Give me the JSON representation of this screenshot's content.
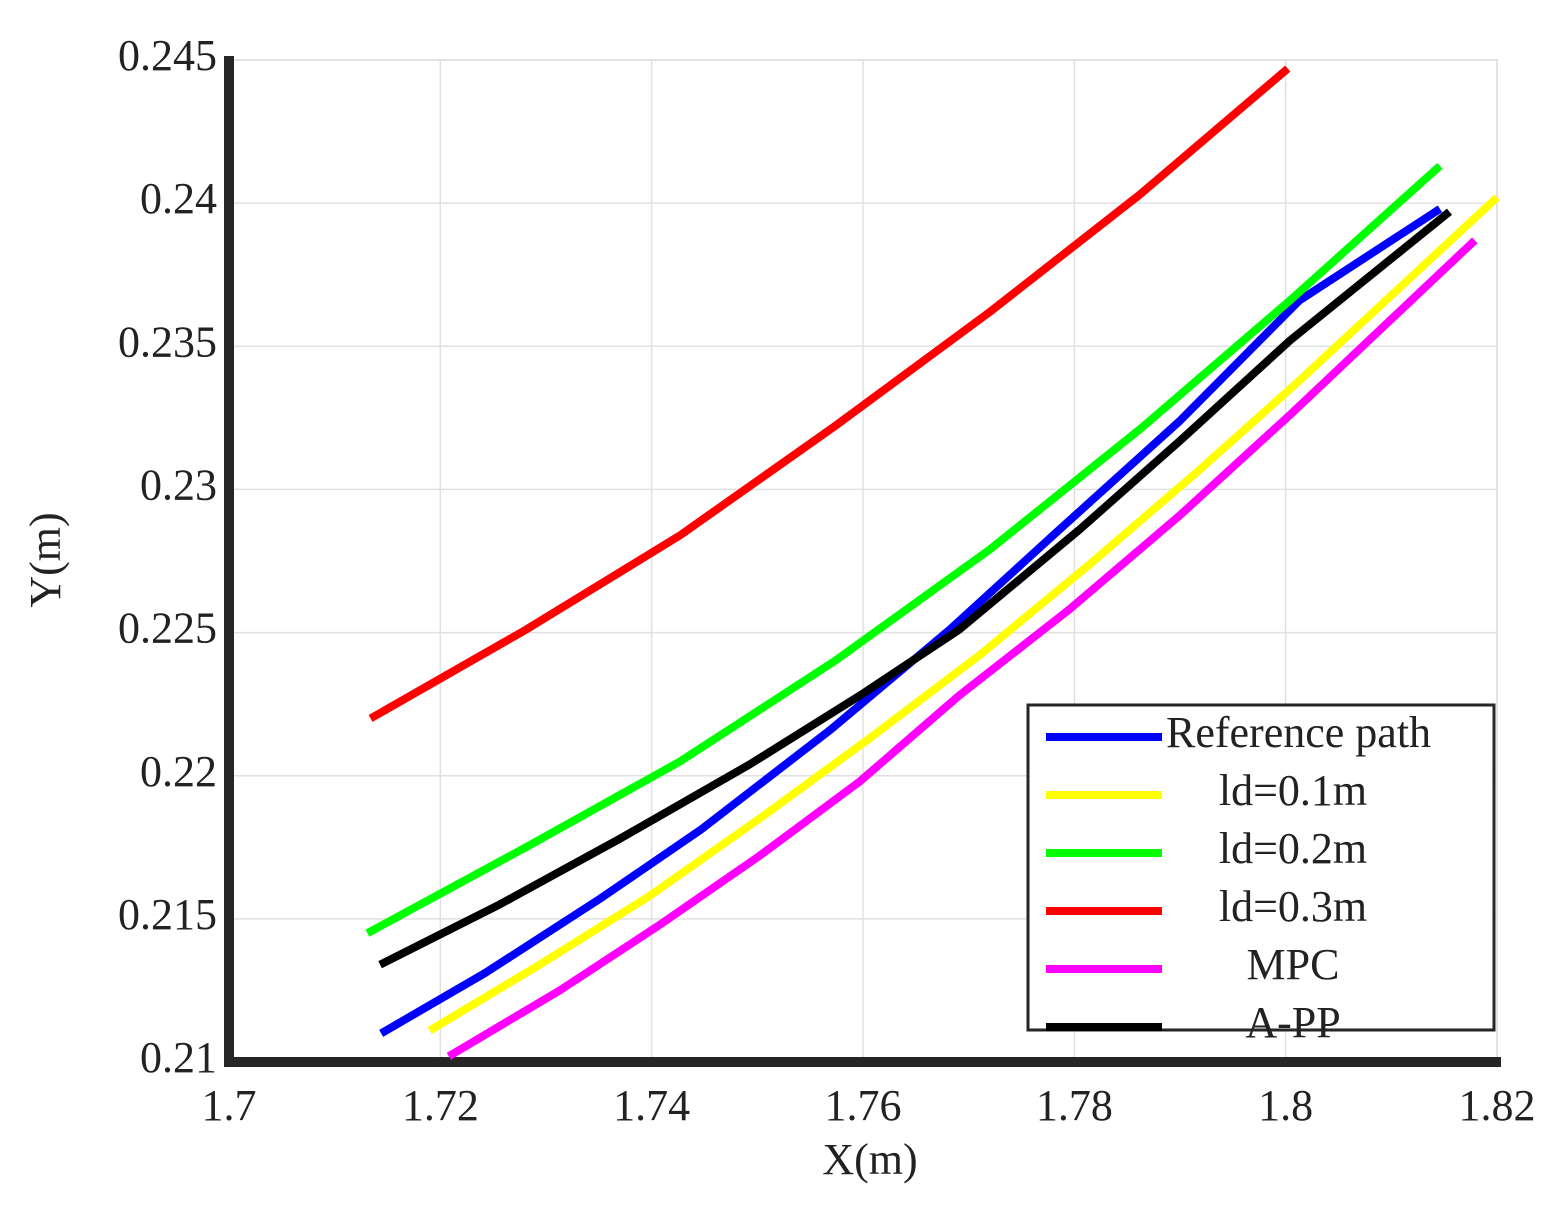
{
  "chart_data": {
    "type": "line",
    "xlabel": "X(m)",
    "ylabel": "Y(m)",
    "xlim": [
      1.7,
      1.82
    ],
    "xticks": [
      1.7,
      1.72,
      1.74,
      1.76,
      1.78,
      1.8,
      1.82
    ],
    "ylim": [
      0.21,
      0.245
    ],
    "yticks": [
      0.21,
      0.215,
      0.22,
      0.225,
      0.23,
      0.235,
      0.24,
      0.245
    ],
    "grid": true,
    "legend": "lower right",
    "series": [
      {
        "name": "Reference path",
        "color": "#0000ff",
        "x": [
          1.7144,
          1.7242,
          1.7351,
          1.7446,
          1.7569,
          1.7682,
          1.7786,
          1.79,
          1.8013,
          1.8146
        ],
        "values": [
          0.211,
          0.2131,
          0.2157,
          0.2181,
          0.2216,
          0.2251,
          0.2286,
          0.2324,
          0.2366,
          0.2398
        ]
      },
      {
        "name": "ld=0.1m",
        "color": "#ffff00",
        "x": [
          1.719,
          1.7294,
          1.7398,
          1.7502,
          1.7606,
          1.771,
          1.7815,
          1.7919,
          1.8013,
          1.82
        ],
        "values": [
          0.2111,
          0.2134,
          0.2158,
          0.2185,
          0.2213,
          0.2242,
          0.2274,
          0.2307,
          0.2338,
          0.2402
        ]
      },
      {
        "name": "ld=0.2m",
        "color": "#00ff00",
        "x": [
          1.7131,
          1.7281,
          1.7427,
          1.7573,
          1.772,
          1.7862,
          1.8004,
          1.8146
        ],
        "values": [
          0.2145,
          0.2175,
          0.2205,
          0.224,
          0.2279,
          0.2321,
          0.2366,
          0.2413
        ]
      },
      {
        "name": "ld=0.3m",
        "color": "#ff0000",
        "x": [
          1.7134,
          1.7281,
          1.7427,
          1.7573,
          1.772,
          1.7862,
          1.8002
        ],
        "values": [
          0.222,
          0.2251,
          0.2284,
          0.2322,
          0.2362,
          0.2403,
          0.2447
        ]
      },
      {
        "name": "MPC",
        "color": "#ff00ff",
        "x": [
          1.7208,
          1.7313,
          1.7408,
          1.7502,
          1.7597,
          1.7691,
          1.7795,
          1.79,
          1.8004,
          1.8179
        ],
        "values": [
          0.2102,
          0.2125,
          0.2148,
          0.2172,
          0.2198,
          0.2228,
          0.2258,
          0.2291,
          0.2326,
          0.2387
        ]
      },
      {
        "name": "A-PP",
        "color": "#000000",
        "x": [
          1.7143,
          1.7256,
          1.737,
          1.7493,
          1.7597,
          1.7691,
          1.7805,
          1.79,
          1.8004,
          1.8155
        ],
        "values": [
          0.2134,
          0.2155,
          0.2178,
          0.2204,
          0.2228,
          0.2251,
          0.2286,
          0.2317,
          0.2352,
          0.2397
        ]
      }
    ]
  }
}
